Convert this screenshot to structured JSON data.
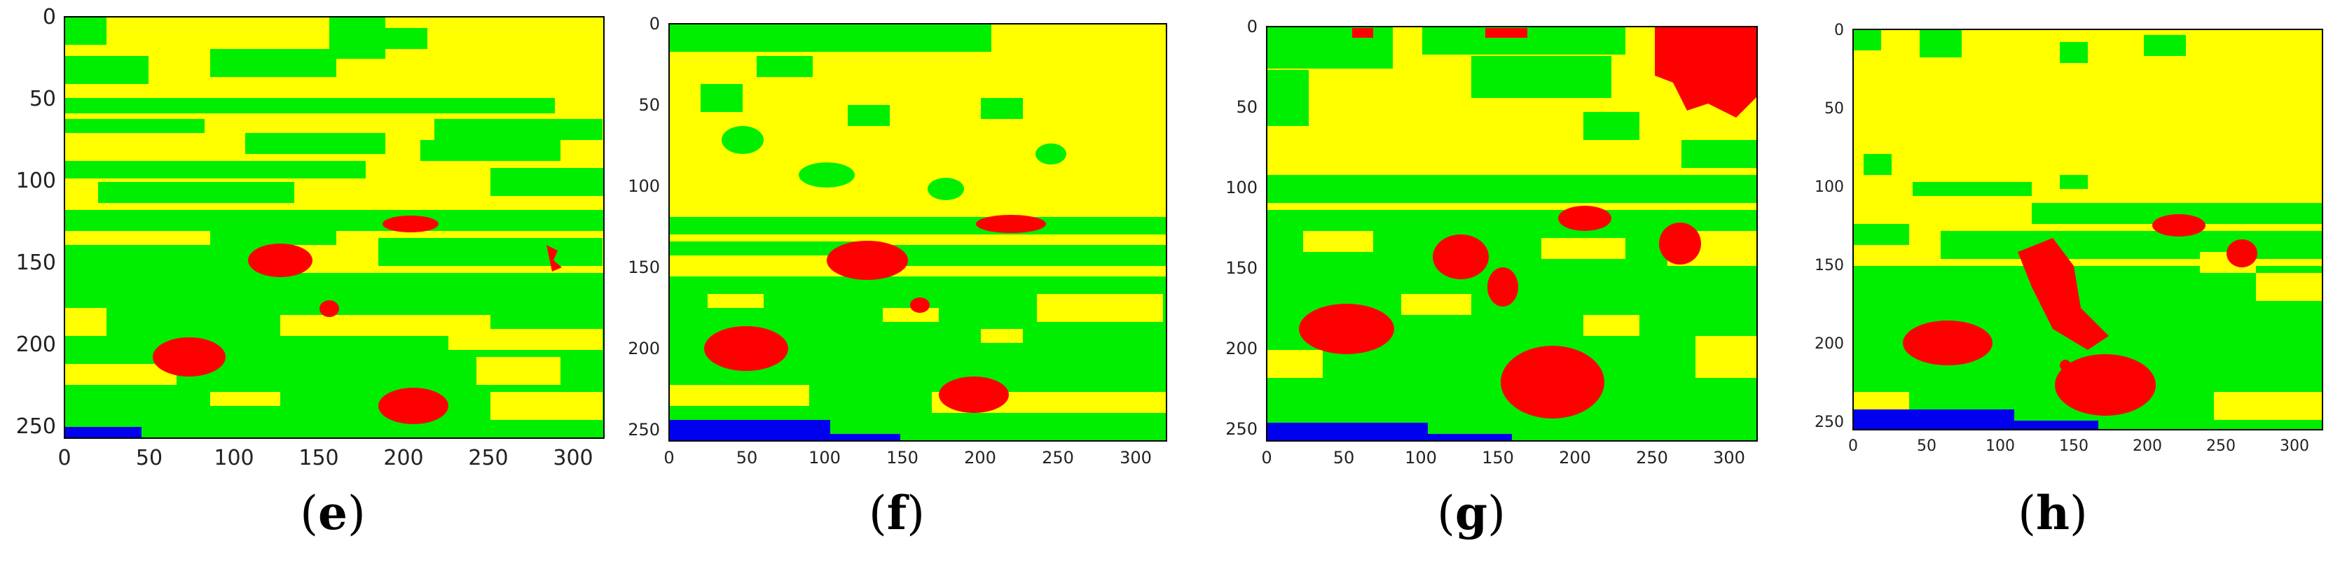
{
  "figure": {
    "panels": [
      {
        "caption": "e",
        "x_ticks": [
          "0",
          "50",
          "100",
          "150",
          "200",
          "250",
          "300"
        ],
        "y_ticks": [
          "0",
          "50",
          "100",
          "150",
          "200",
          "250"
        ],
        "colors": {
          "background": "#ffff00",
          "vegetation": "#00ee00",
          "lesion": "#ff0000",
          "water": "#0000ee"
        }
      },
      {
        "caption": "f",
        "x_ticks": [
          "0",
          "50",
          "100",
          "150",
          "200",
          "250",
          "300"
        ],
        "y_ticks": [
          "0",
          "50",
          "100",
          "150",
          "200",
          "250"
        ],
        "colors": {
          "background": "#ffff00",
          "vegetation": "#00ee00",
          "lesion": "#ff0000",
          "water": "#0000ee"
        }
      },
      {
        "caption": "g",
        "x_ticks": [
          "0",
          "50",
          "100",
          "150",
          "200",
          "250",
          "300"
        ],
        "y_ticks": [
          "0",
          "50",
          "100",
          "150",
          "200",
          "250"
        ],
        "colors": {
          "background": "#ffff00",
          "vegetation": "#00ee00",
          "lesion": "#ff0000",
          "water": "#0000ee"
        }
      },
      {
        "caption": "h",
        "x_ticks": [
          "0",
          "50",
          "100",
          "150",
          "200",
          "250",
          "300"
        ],
        "y_ticks": [
          "0",
          "50",
          "100",
          "150",
          "200",
          "250"
        ],
        "colors": {
          "background": "#ffff00",
          "vegetation": "#00ee00",
          "lesion": "#ff0000",
          "water": "#0000ee"
        }
      }
    ]
  }
}
